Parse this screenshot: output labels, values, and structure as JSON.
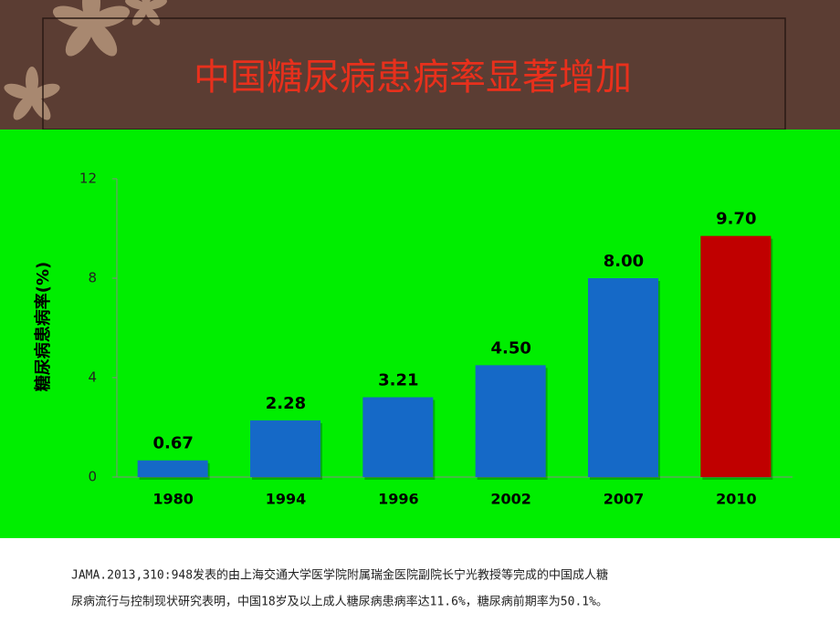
{
  "chart_data": {
    "type": "bar",
    "title": "中国糖尿病患病率显著增加",
    "y_label": "糖尿病患病率(%)",
    "categories": [
      "1980",
      "1994",
      "1996",
      "2002",
      "2007",
      "2010"
    ],
    "values": [
      0.67,
      2.28,
      3.21,
      4.5,
      8,
      9.7
    ],
    "value_labels": [
      "0.67",
      "2.28",
      "3.21",
      "4.50",
      "8.00",
      "9.70"
    ],
    "colors": [
      "#1569c7",
      "#1569c7",
      "#1569c7",
      "#1569c7",
      "#1569c7",
      "#c00000"
    ],
    "ylim": [
      0,
      12
    ],
    "yticks": [
      0,
      4,
      8,
      12
    ],
    "grid": false,
    "footnote": [
      "JAMA.2013,310:948发表的由上海交通大学医学院附属瑞金医院副院长宁光教授等完成的中国成人糖",
      "尿病流行与控制现状研究表明，中国18岁及以上成人糖尿病患病率达11.6%，糖尿病前期率为50.1%。"
    ]
  }
}
